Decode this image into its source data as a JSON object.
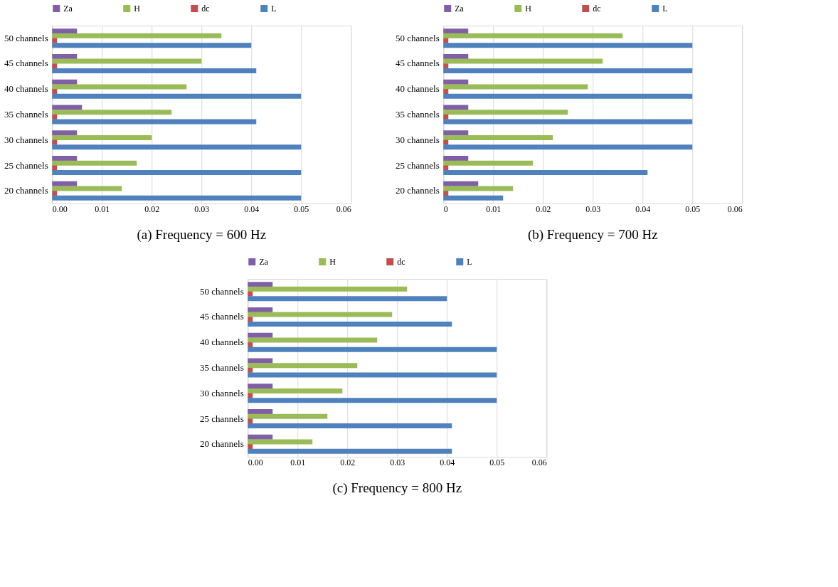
{
  "chart_data": [
    {
      "type": "bar",
      "orientation": "horizontal",
      "title": "(a) Frequency = 600 Hz",
      "categories": [
        "50 channels",
        "45 channels",
        "40 channels",
        "35 channels",
        "30 channels",
        "25 channels",
        "20 channels"
      ],
      "series": [
        {
          "name": "Za",
          "color": "#7f5fa5",
          "values": [
            0.005,
            0.005,
            0.005,
            0.006,
            0.005,
            0.005,
            0.005
          ]
        },
        {
          "name": "H",
          "color": "#9bbb59",
          "values": [
            0.034,
            0.03,
            0.027,
            0.024,
            0.02,
            0.017,
            0.014
          ]
        },
        {
          "name": "dc",
          "color": "#c0504d",
          "values": [
            0.001,
            0.001,
            0.001,
            0.001,
            0.001,
            0.001,
            0.001
          ]
        },
        {
          "name": "L",
          "color": "#4f81bd",
          "values": [
            0.04,
            0.041,
            0.05,
            0.041,
            0.05,
            0.05,
            0.05
          ]
        }
      ],
      "xlim": [
        0,
        0.06
      ],
      "xticks": [
        {
          "value": 0,
          "label": "0.00"
        },
        0.01,
        0.02,
        0.03,
        0.04,
        0.05,
        0.06
      ],
      "grid": "x",
      "legend": "top"
    },
    {
      "type": "bar",
      "orientation": "horizontal",
      "title": "(b) Frequency = 700 Hz",
      "categories": [
        "50 channels",
        "45 channels",
        "40 channels",
        "35 channels",
        "30 channels",
        "25 channels",
        "20 channels"
      ],
      "series": [
        {
          "name": "Za",
          "color": "#7f5fa5",
          "values": [
            0.005,
            0.005,
            0.005,
            0.005,
            0.005,
            0.005,
            0.007
          ]
        },
        {
          "name": "H",
          "color": "#9bbb59",
          "values": [
            0.036,
            0.032,
            0.029,
            0.025,
            0.022,
            0.018,
            0.014
          ]
        },
        {
          "name": "dc",
          "color": "#c0504d",
          "values": [
            0.001,
            0.001,
            0.001,
            0.001,
            0.001,
            0.001,
            0.001
          ]
        },
        {
          "name": "L",
          "color": "#4f81bd",
          "values": [
            0.05,
            0.05,
            0.05,
            0.05,
            0.05,
            0.041,
            0.012
          ]
        }
      ],
      "xlim": [
        0,
        0.06
      ],
      "xticks": [
        0,
        0.01,
        0.02,
        0.03,
        0.04,
        0.05,
        0.06
      ],
      "grid": "x",
      "legend": "top"
    },
    {
      "type": "bar",
      "orientation": "horizontal",
      "title": "(c) Frequency = 800 Hz",
      "categories": [
        "50 channels",
        "45 channels",
        "40 channels",
        "35 channels",
        "30 channels",
        "25 channels",
        "20 channels"
      ],
      "series": [
        {
          "name": "Za",
          "color": "#7f5fa5",
          "values": [
            0.005,
            0.005,
            0.005,
            0.005,
            0.005,
            0.005,
            0.005
          ]
        },
        {
          "name": "H",
          "color": "#9bbb59",
          "values": [
            0.032,
            0.029,
            0.026,
            0.022,
            0.019,
            0.016,
            0.013
          ]
        },
        {
          "name": "dc",
          "color": "#c0504d",
          "values": [
            0.001,
            0.001,
            0.001,
            0.001,
            0.001,
            0.001,
            0.001
          ]
        },
        {
          "name": "L",
          "color": "#4f81bd",
          "values": [
            0.04,
            0.041,
            0.05,
            0.05,
            0.05,
            0.041,
            0.041
          ]
        }
      ],
      "xlim": [
        0,
        0.06
      ],
      "xticks": [
        {
          "value": 0,
          "label": "0.00"
        },
        0.01,
        0.02,
        0.03,
        0.04,
        0.05,
        0.06
      ],
      "grid": "x",
      "legend": "top"
    }
  ]
}
